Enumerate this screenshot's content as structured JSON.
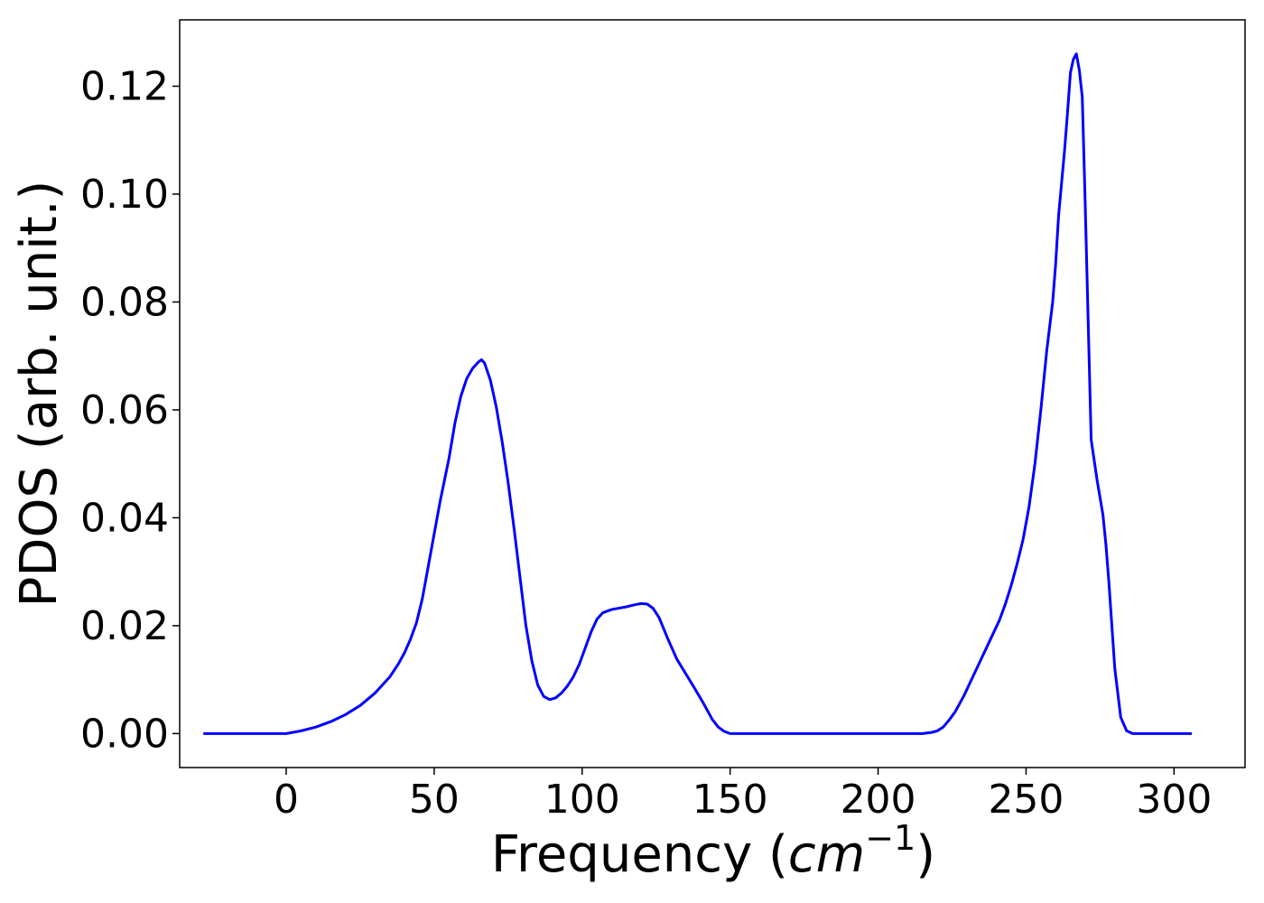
{
  "chart_data": {
    "type": "line",
    "title": "",
    "xlabel": "Frequency (",
    "xlabel_math_base": "cm",
    "xlabel_math_sup": "−1",
    "xlabel_close": ")",
    "ylabel": "PDOS (arb. unit.)",
    "xlim": [
      -36,
      324
    ],
    "ylim": [
      -0.0063,
      0.1323
    ],
    "grid": false,
    "legend": "none",
    "x_ticks": [
      0,
      50,
      100,
      150,
      200,
      250,
      300
    ],
    "x_tick_labels": [
      "0",
      "50",
      "100",
      "150",
      "200",
      "250",
      "300"
    ],
    "y_ticks": [
      0.0,
      0.02,
      0.04,
      0.06,
      0.08,
      0.1,
      0.12
    ],
    "y_tick_labels": [
      "0.00",
      "0.02",
      "0.04",
      "0.06",
      "0.08",
      "0.10",
      "0.12"
    ],
    "series": [
      {
        "color": "#0000ff",
        "x": [
          -28,
          -10,
          0,
          5,
          10,
          15,
          20,
          25,
          30,
          35,
          38,
          40,
          42,
          44,
          46,
          48,
          50,
          52,
          55,
          57,
          59,
          61,
          63,
          65,
          66,
          67,
          69,
          71,
          73,
          75,
          77,
          79,
          81,
          83,
          85,
          87,
          89,
          91,
          93,
          95,
          97,
          99,
          101,
          103,
          105,
          107,
          110,
          115,
          118,
          120,
          122,
          124,
          126,
          129,
          132,
          135,
          138,
          141,
          144,
          146,
          148,
          150,
          160,
          180,
          200,
          215,
          218,
          220,
          222,
          224,
          226,
          229,
          232,
          235,
          238,
          241,
          243,
          245,
          247,
          249,
          251,
          253,
          255,
          257,
          259,
          260,
          261,
          262,
          263,
          264,
          265,
          266,
          267,
          268,
          269,
          270,
          272,
          274,
          276,
          277,
          278,
          279,
          280,
          282,
          284,
          286,
          290,
          300,
          306
        ],
        "y": [
          0,
          0,
          0,
          0.0005,
          0.0012,
          0.0022,
          0.0035,
          0.0052,
          0.0075,
          0.0105,
          0.013,
          0.015,
          0.0175,
          0.0205,
          0.025,
          0.031,
          0.037,
          0.043,
          0.051,
          0.0575,
          0.0625,
          0.0658,
          0.0677,
          0.0689,
          0.0693,
          0.0687,
          0.0655,
          0.0605,
          0.054,
          0.0465,
          0.038,
          0.029,
          0.02,
          0.0135,
          0.009,
          0.0069,
          0.0063,
          0.0066,
          0.0075,
          0.0088,
          0.0105,
          0.0128,
          0.0158,
          0.0188,
          0.0212,
          0.0224,
          0.023,
          0.0235,
          0.0239,
          0.0241,
          0.024,
          0.0232,
          0.0215,
          0.0175,
          0.0138,
          0.0111,
          0.0084,
          0.0056,
          0.0026,
          0.0012,
          0.0004,
          0,
          0,
          0,
          0,
          0,
          0.0002,
          0.0005,
          0.0012,
          0.0025,
          0.004,
          0.007,
          0.0105,
          0.014,
          0.0175,
          0.021,
          0.024,
          0.0275,
          0.0315,
          0.036,
          0.042,
          0.05,
          0.06,
          0.071,
          0.08,
          0.087,
          0.096,
          0.102,
          0.108,
          0.115,
          0.1225,
          0.125,
          0.126,
          0.123,
          0.118,
          0.098,
          0.0545,
          0.047,
          0.0405,
          0.035,
          0.028,
          0.02,
          0.012,
          0.003,
          0.0005,
          0,
          0,
          0,
          0
        ]
      }
    ]
  }
}
